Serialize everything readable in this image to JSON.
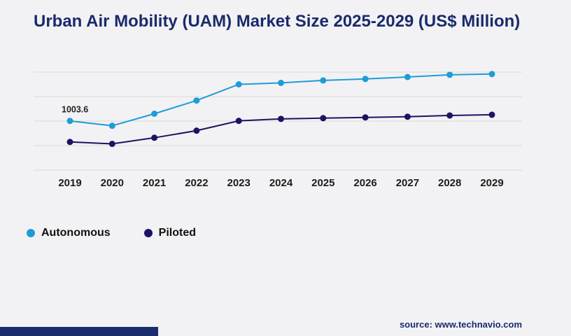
{
  "title": "Urban Air Mobility (UAM) Market Size 2025-2029 (US$ Million)",
  "source": "source: www.technavio.com",
  "colors": {
    "autonomous": "#1e9cd7",
    "piloted": "#1b1464",
    "title": "#1a2a6c",
    "gridline": "#d9d9d9",
    "footer_bar": "#1a2c6b",
    "axis_label": "#1c1c1c"
  },
  "chart_data": {
    "type": "line",
    "x": [
      2019,
      2020,
      2021,
      2022,
      2023,
      2024,
      2025,
      2026,
      2027,
      2028,
      2029
    ],
    "series": [
      {
        "name": "Autonomous",
        "color_key": "autonomous",
        "values": [
          1003.6,
          905,
          1150,
          1420,
          1750,
          1780,
          1830,
          1860,
          1900,
          1945,
          1960
        ]
      },
      {
        "name": "Piloted",
        "color_key": "piloted",
        "values": [
          575,
          535,
          660,
          805,
          1005,
          1045,
          1060,
          1075,
          1090,
          1115,
          1130
        ]
      }
    ],
    "title": "Urban Air Mobility (UAM) Market Size 2025-2029 (US$ Million)",
    "xlabel": "",
    "ylabel": "",
    "ylim": [
      0,
      2000
    ],
    "gridline_step": 500,
    "grid": true,
    "legend_position": "bottom-left",
    "annotations": [
      {
        "series": "Autonomous",
        "x": 2019,
        "label": "1003.6"
      }
    ]
  }
}
